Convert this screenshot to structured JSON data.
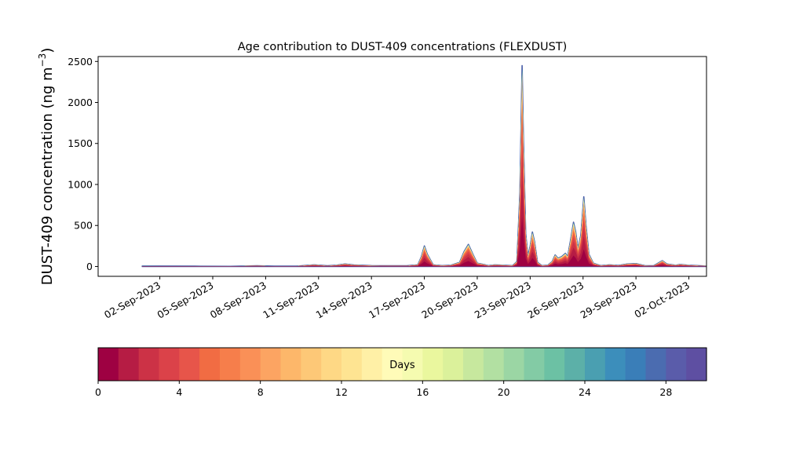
{
  "chart_data": {
    "type": "area",
    "title": "Age contribution to DUST-409 concentrations (FLEXDUST)",
    "ylabel_main": "DUST-409 concentration (ng m",
    "ylabel_sup": "−3",
    "ylabel_close": ")",
    "xlabel": "",
    "ylim": [
      -120,
      2560
    ],
    "xlim": [
      "2023-08-29T12:00",
      "2023-10-03T00:00"
    ],
    "yticks": [
      0,
      500,
      1000,
      1500,
      2000,
      2500
    ],
    "xticks": [
      "2023-09-02",
      "2023-09-05",
      "2023-09-08",
      "2023-09-11",
      "2023-09-14",
      "2023-09-17",
      "2023-09-20",
      "2023-09-23",
      "2023-09-26",
      "2023-09-29",
      "2023-10-02"
    ],
    "xtick_labels": [
      "02-Sep-2023",
      "05-Sep-2023",
      "08-Sep-2023",
      "11-Sep-2023",
      "14-Sep-2023",
      "17-Sep-2023",
      "20-Sep-2023",
      "23-Sep-2023",
      "26-Sep-2023",
      "29-Sep-2023",
      "02-Oct-2023"
    ],
    "series_total": {
      "name": "",
      "points": [
        [
          "2023-09-01T00:00",
          5
        ],
        [
          "2023-09-04T00:00",
          3
        ],
        [
          "2023-09-06T00:00",
          2
        ],
        [
          "2023-09-07T12:00",
          8
        ],
        [
          "2023-09-08T12:00",
          3
        ],
        [
          "2023-09-09T18:00",
          4
        ],
        [
          "2023-09-10T18:00",
          20
        ],
        [
          "2023-09-11T12:00",
          8
        ],
        [
          "2023-09-12T00:00",
          15
        ],
        [
          "2023-09-12T12:00",
          30
        ],
        [
          "2023-09-13T00:00",
          18
        ],
        [
          "2023-09-14T00:00",
          10
        ],
        [
          "2023-09-15T00:00",
          8
        ],
        [
          "2023-09-16T00:00",
          8
        ],
        [
          "2023-09-16T15:00",
          20
        ],
        [
          "2023-09-16T20:00",
          120
        ],
        [
          "2023-09-17T00:00",
          250
        ],
        [
          "2023-09-17T04:00",
          150
        ],
        [
          "2023-09-17T12:00",
          20
        ],
        [
          "2023-09-18T00:00",
          10
        ],
        [
          "2023-09-18T12:00",
          15
        ],
        [
          "2023-09-19T00:00",
          50
        ],
        [
          "2023-09-19T06:00",
          180
        ],
        [
          "2023-09-19T12:00",
          270
        ],
        [
          "2023-09-19T18:00",
          150
        ],
        [
          "2023-09-20T00:00",
          40
        ],
        [
          "2023-09-20T09:00",
          25
        ],
        [
          "2023-09-20T15:00",
          10
        ],
        [
          "2023-09-21T00:00",
          20
        ],
        [
          "2023-09-21T12:00",
          15
        ],
        [
          "2023-09-22T00:00",
          10
        ],
        [
          "2023-09-22T06:00",
          60
        ],
        [
          "2023-09-22T10:00",
          900
        ],
        [
          "2023-09-22T13:00",
          2450
        ],
        [
          "2023-09-22T15:00",
          1500
        ],
        [
          "2023-09-22T18:00",
          400
        ],
        [
          "2023-09-22T21:00",
          120
        ],
        [
          "2023-09-23T00:00",
          250
        ],
        [
          "2023-09-23T03:00",
          420
        ],
        [
          "2023-09-23T06:00",
          300
        ],
        [
          "2023-09-23T10:00",
          50
        ],
        [
          "2023-09-23T16:00",
          10
        ],
        [
          "2023-09-24T00:00",
          15
        ],
        [
          "2023-09-24T06:00",
          60
        ],
        [
          "2023-09-24T10:00",
          140
        ],
        [
          "2023-09-24T14:00",
          100
        ],
        [
          "2023-09-24T19:00",
          120
        ],
        [
          "2023-09-25T00:00",
          160
        ],
        [
          "2023-09-25T03:00",
          120
        ],
        [
          "2023-09-25T07:00",
          320
        ],
        [
          "2023-09-25T11:00",
          540
        ],
        [
          "2023-09-25T14:00",
          420
        ],
        [
          "2023-09-25T17:00",
          220
        ],
        [
          "2023-09-25T21:00",
          380
        ],
        [
          "2023-09-26T01:00",
          850
        ],
        [
          "2023-09-26T04:00",
          500
        ],
        [
          "2023-09-26T08:00",
          150
        ],
        [
          "2023-09-26T14:00",
          40
        ],
        [
          "2023-09-27T00:00",
          10
        ],
        [
          "2023-09-27T12:00",
          20
        ],
        [
          "2023-09-28T00:00",
          12
        ],
        [
          "2023-09-28T12:00",
          30
        ],
        [
          "2023-09-29T00:00",
          35
        ],
        [
          "2023-09-29T12:00",
          10
        ],
        [
          "2023-09-30T00:00",
          8
        ],
        [
          "2023-09-30T12:00",
          70
        ],
        [
          "2023-09-30T18:00",
          30
        ],
        [
          "2023-10-01T06:00",
          15
        ],
        [
          "2023-10-01T12:00",
          25
        ],
        [
          "2023-10-02T00:00",
          15
        ],
        [
          "2023-10-03T00:00",
          5
        ],
        [
          "2023-10-04T00:00",
          3
        ],
        [
          "2023-10-05T00:00",
          2
        ]
      ]
    },
    "colorbar": {
      "label": "Days",
      "range": [
        0,
        30
      ],
      "ticks": [
        0,
        4,
        8,
        12,
        16,
        20,
        24,
        28
      ],
      "colors": [
        "#9e0142",
        "#b61c44",
        "#cc3246",
        "#db4249",
        "#e7554a",
        "#f16c43",
        "#f67e4b",
        "#fa9057",
        "#fca462",
        "#fdb76a",
        "#fdc877",
        "#fed885",
        "#fee492",
        "#fff0a6",
        "#fffbb8",
        "#f5fbb0",
        "#eaf79e",
        "#dbf19b",
        "#c7e89e",
        "#b2e0a2",
        "#9bd6a4",
        "#83cba5",
        "#6cc1a4",
        "#5cb0a8",
        "#4a9fb1",
        "#3c8ebb",
        "#3a7eb8",
        "#4b6cb0",
        "#5a5caa",
        "#5e4fa2"
      ]
    }
  }
}
